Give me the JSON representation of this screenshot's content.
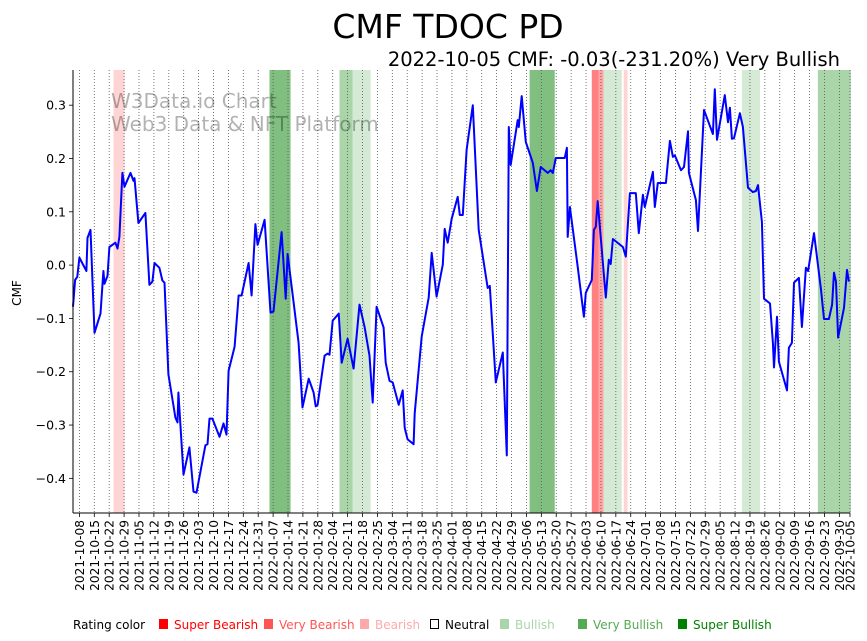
{
  "chart_data": {
    "type": "line",
    "title": "CMF TDOC PD",
    "subtitle": "2022-10-05 CMF: -0.03(-231.20%) Very Bullish",
    "watermark": [
      "W3Data.io Chart",
      "Web3 Data & NFT Platform"
    ],
    "xlabel": "",
    "ylabel": "CMF",
    "x_origin": "2021-10-08",
    "x_unit": "days since x_origin",
    "xlim": [
      "2021-10-05",
      "2022-10-05"
    ],
    "ylim": [
      -0.465,
      0.366
    ],
    "yticks": [
      -0.4,
      -0.3,
      -0.2,
      -0.1,
      0.0,
      0.1,
      0.2,
      0.3
    ],
    "ytick_labels": [
      "−0.4",
      "−0.3",
      "−0.2",
      "−0.1",
      "0.0",
      "0.1",
      "0.2",
      "0.3"
    ],
    "xticks": [
      "2021-10-08",
      "2021-10-15",
      "2021-10-22",
      "2021-10-29",
      "2021-11-05",
      "2021-11-12",
      "2021-11-19",
      "2021-11-26",
      "2021-12-03",
      "2021-12-10",
      "2021-12-17",
      "2021-12-24",
      "2021-12-31",
      "2022-01-07",
      "2022-01-14",
      "2022-01-21",
      "2022-01-28",
      "2022-02-04",
      "2022-02-11",
      "2022-02-18",
      "2022-02-25",
      "2022-03-04",
      "2022-03-11",
      "2022-03-18",
      "2022-03-25",
      "2022-04-01",
      "2022-04-08",
      "2022-04-15",
      "2022-04-22",
      "2022-04-29",
      "2022-05-06",
      "2022-05-13",
      "2022-05-20",
      "2022-05-27",
      "2022-06-03",
      "2022-06-10",
      "2022-06-17",
      "2022-06-24",
      "2022-07-01",
      "2022-07-08",
      "2022-07-15",
      "2022-07-22",
      "2022-07-29",
      "2022-08-05",
      "2022-08-12",
      "2022-08-19",
      "2022-08-26",
      "2022-09-02",
      "2022-09-09",
      "2022-09-16",
      "2022-09-23",
      "2022-09-30",
      "2022-10-05"
    ],
    "grid": "vertical dotted",
    "series": [
      {
        "name": "CMF",
        "color": "#0000ff",
        "points": [
          [
            -3,
            -0.078
          ],
          [
            -2,
            -0.028
          ],
          [
            -1,
            -0.022
          ],
          [
            0,
            0.014
          ],
          [
            3.3,
            -0.011
          ],
          [
            3.8,
            0.051
          ],
          [
            5.2,
            0.066
          ],
          [
            7.1,
            -0.127
          ],
          [
            9.9,
            -0.091
          ],
          [
            11.3,
            -0.011
          ],
          [
            11.8,
            -0.035
          ],
          [
            13.2,
            -0.02
          ],
          [
            14.1,
            0.034
          ],
          [
            16.9,
            0.042
          ],
          [
            17.9,
            0.031
          ],
          [
            18.8,
            0.053
          ],
          [
            20.2,
            0.173
          ],
          [
            21.2,
            0.147
          ],
          [
            24.0,
            0.173
          ],
          [
            25.4,
            0.158
          ],
          [
            25.9,
            0.163
          ],
          [
            27.7,
            0.079
          ],
          [
            31.0,
            0.098
          ],
          [
            32.9,
            -0.037
          ],
          [
            34.3,
            -0.031
          ],
          [
            35.3,
            0.004
          ],
          [
            37.6,
            -0.005
          ],
          [
            39.0,
            -0.029
          ],
          [
            40.0,
            -0.033
          ],
          [
            41.8,
            -0.205
          ],
          [
            45.1,
            -0.286
          ],
          [
            46.1,
            -0.295
          ],
          [
            46.5,
            -0.239
          ],
          [
            48.9,
            -0.393
          ],
          [
            51.7,
            -0.342
          ],
          [
            53.6,
            -0.425
          ],
          [
            55.0,
            -0.427
          ],
          [
            59.2,
            -0.338
          ],
          [
            60.2,
            -0.336
          ],
          [
            61.1,
            -0.288
          ],
          [
            62.5,
            -0.288
          ],
          [
            65.8,
            -0.322
          ],
          [
            67.7,
            -0.297
          ],
          [
            69.1,
            -0.318
          ],
          [
            70.1,
            -0.198
          ],
          [
            72.9,
            -0.153
          ],
          [
            74.3,
            -0.082
          ],
          [
            74.8,
            -0.057
          ],
          [
            76.2,
            -0.057
          ],
          [
            79.5,
            0.004
          ],
          [
            80.9,
            -0.057
          ],
          [
            82.7,
            0.077
          ],
          [
            83.7,
            0.038
          ],
          [
            87.0,
            0.085
          ],
          [
            89.8,
            -0.089
          ],
          [
            91.2,
            -0.087
          ],
          [
            95.0,
            0.062
          ],
          [
            96.9,
            -0.063
          ],
          [
            97.8,
            0.021
          ],
          [
            103.0,
            -0.146
          ],
          [
            104.8,
            -0.267
          ],
          [
            107.7,
            -0.213
          ],
          [
            110.0,
            -0.239
          ],
          [
            111.0,
            -0.265
          ],
          [
            111.9,
            -0.262
          ],
          [
            115.2,
            -0.17
          ],
          [
            116.6,
            -0.166
          ],
          [
            117.5,
            -0.168
          ],
          [
            119.0,
            -0.104
          ],
          [
            121.8,
            -0.091
          ],
          [
            123.2,
            -0.183
          ],
          [
            126.0,
            -0.138
          ],
          [
            128.8,
            -0.194
          ],
          [
            131.6,
            -0.074
          ],
          [
            134.0,
            -0.116
          ],
          [
            136.3,
            -0.17
          ],
          [
            137.8,
            -0.258
          ],
          [
            139.6,
            -0.078
          ],
          [
            142.9,
            -0.117
          ],
          [
            143.9,
            -0.183
          ],
          [
            145.7,
            -0.217
          ],
          [
            147.2,
            -0.22
          ],
          [
            150.0,
            -0.262
          ],
          [
            151.9,
            -0.235
          ],
          [
            152.8,
            -0.305
          ],
          [
            154.2,
            -0.327
          ],
          [
            157.0,
            -0.336
          ],
          [
            157.5,
            -0.278
          ],
          [
            160.8,
            -0.134
          ],
          [
            164.1,
            -0.061
          ],
          [
            165.5,
            0.023
          ],
          [
            167.8,
            -0.059
          ],
          [
            170.7,
            0.001
          ],
          [
            171.6,
            0.068
          ],
          [
            173.0,
            0.042
          ],
          [
            174.9,
            0.087
          ],
          [
            177.7,
            0.128
          ],
          [
            178.7,
            0.094
          ],
          [
            180.1,
            0.094
          ],
          [
            181.9,
            0.216
          ],
          [
            184.8,
            0.3
          ],
          [
            187.6,
            0.066
          ],
          [
            191.8,
            -0.043
          ],
          [
            192.8,
            -0.039
          ],
          [
            195.6,
            -0.22
          ],
          [
            198.9,
            -0.164
          ],
          [
            200.8,
            -0.357
          ],
          [
            201.7,
            0.259
          ],
          [
            202.6,
            0.188
          ],
          [
            205.9,
            0.272
          ],
          [
            206.4,
            0.259
          ],
          [
            207.8,
            0.317
          ],
          [
            209.7,
            0.231
          ],
          [
            213.0,
            0.192
          ],
          [
            214.9,
            0.139
          ],
          [
            216.7,
            0.184
          ],
          [
            220.0,
            0.173
          ],
          [
            221.4,
            0.178
          ],
          [
            222.4,
            0.173
          ],
          [
            223.8,
            0.201
          ],
          [
            228.0,
            0.201
          ],
          [
            229.0,
            0.22
          ],
          [
            229.4,
            0.053
          ],
          [
            230.4,
            0.109
          ],
          [
            234.1,
            -0.003
          ],
          [
            237.0,
            -0.097
          ],
          [
            237.9,
            -0.052
          ],
          [
            240.7,
            -0.028
          ],
          [
            241.7,
            0.066
          ],
          [
            242.6,
            0.072
          ],
          [
            243.5,
            0.12
          ],
          [
            247.3,
            -0.061
          ],
          [
            248.7,
            0.01
          ],
          [
            249.6,
            0.002
          ],
          [
            250.6,
            0.049
          ],
          [
            255.3,
            0.034
          ],
          [
            256.7,
            0.016
          ],
          [
            258.6,
            0.135
          ],
          [
            261.4,
            0.135
          ],
          [
            262.8,
            0.06
          ],
          [
            264.7,
            0.132
          ],
          [
            265.6,
            0.109
          ],
          [
            269.4,
            0.175
          ],
          [
            270.3,
            0.109
          ],
          [
            271.7,
            0.154
          ],
          [
            275.5,
            0.154
          ],
          [
            277.4,
            0.233
          ],
          [
            278.8,
            0.203
          ],
          [
            279.7,
            0.206
          ],
          [
            282.6,
            0.178
          ],
          [
            284.0,
            0.184
          ],
          [
            285.9,
            0.251
          ],
          [
            286.3,
            0.173
          ],
          [
            289.6,
            0.122
          ],
          [
            290.6,
            0.064
          ],
          [
            293.4,
            0.291
          ],
          [
            297.6,
            0.246
          ],
          [
            298.5,
            0.33
          ],
          [
            299.5,
            0.235
          ],
          [
            303.2,
            0.319
          ],
          [
            304.7,
            0.268
          ],
          [
            305.6,
            0.295
          ],
          [
            306.5,
            0.237
          ],
          [
            307.5,
            0.238
          ],
          [
            310.3,
            0.285
          ],
          [
            311.7,
            0.259
          ],
          [
            314.1,
            0.145
          ],
          [
            316.4,
            0.137
          ],
          [
            317.8,
            0.139
          ],
          [
            318.8,
            0.15
          ],
          [
            320.6,
            0.081
          ],
          [
            321.6,
            -0.063
          ],
          [
            324.4,
            -0.072
          ],
          [
            325.8,
            -0.146
          ],
          [
            326.3,
            -0.192
          ],
          [
            327.7,
            -0.097
          ],
          [
            328.6,
            -0.181
          ],
          [
            332.4,
            -0.235
          ],
          [
            333.3,
            -0.155
          ],
          [
            334.7,
            -0.146
          ],
          [
            335.7,
            -0.033
          ],
          [
            338.0,
            -0.024
          ],
          [
            339.4,
            -0.116
          ],
          [
            341.3,
            -0.005
          ],
          [
            342.3,
            -0.011
          ],
          [
            345.1,
            0.06
          ],
          [
            348.4,
            -0.046
          ],
          [
            349.8,
            -0.101
          ],
          [
            352.1,
            -0.101
          ],
          [
            353.6,
            -0.074
          ],
          [
            354.5,
            -0.014
          ],
          [
            355.4,
            -0.031
          ],
          [
            356.4,
            -0.136
          ],
          [
            359.2,
            -0.08
          ],
          [
            360.6,
            -0.009
          ],
          [
            361.5,
            -0.031
          ]
        ]
      }
    ],
    "rating_bands": [
      {
        "rating": "Bearish",
        "start": 16.0,
        "end": 21.2
      },
      {
        "rating": "Super Bullish",
        "start": 89.3,
        "end": 99.2
      },
      {
        "rating": "Very Bullish",
        "start": 122.2,
        "end": 128.3
      },
      {
        "rating": "Bullish",
        "start": 128.3,
        "end": 136.8
      },
      {
        "rating": "Super Bullish",
        "start": 211.5,
        "end": 223.3
      },
      {
        "rating": "Super Bearish",
        "start": 240.7,
        "end": 244.0
      },
      {
        "rating": "Very Bearish",
        "start": 244.0,
        "end": 246.3
      },
      {
        "rating": "Bullish",
        "start": 246.3,
        "end": 254.8
      },
      {
        "rating": "Bearish",
        "start": 255.7,
        "end": 257.5
      },
      {
        "rating": "Bullish",
        "start": 311.2,
        "end": 319.7
      },
      {
        "rating": "Very Bullish",
        "start": 346.9,
        "end": 362.4
      }
    ],
    "band_colors": {
      "Super Bearish": "#ff8080",
      "Very Bearish": "#ffa3a3",
      "Bearish": "#ffd4d4",
      "Bullish": "#d4ead4",
      "Very Bullish": "#a9d5a9",
      "Super Bullish": "#80bf80"
    },
    "legend": {
      "title": "Rating color",
      "placement": "bottom",
      "items": [
        {
          "label": "Super Bearish",
          "color": "#ff0000",
          "hollow": false
        },
        {
          "label": "Very Bearish",
          "color": "#ff5555",
          "hollow": false
        },
        {
          "label": "Bearish",
          "color": "#ffaaaa",
          "hollow": false
        },
        {
          "label": "Neutral",
          "color": "#000000",
          "hollow": true
        },
        {
          "label": "Bullish",
          "color": "#aad5aa",
          "hollow": false
        },
        {
          "label": "Very Bullish",
          "color": "#55aa55",
          "hollow": false
        },
        {
          "label": "Super Bullish",
          "color": "#008000",
          "hollow": false
        }
      ]
    }
  }
}
